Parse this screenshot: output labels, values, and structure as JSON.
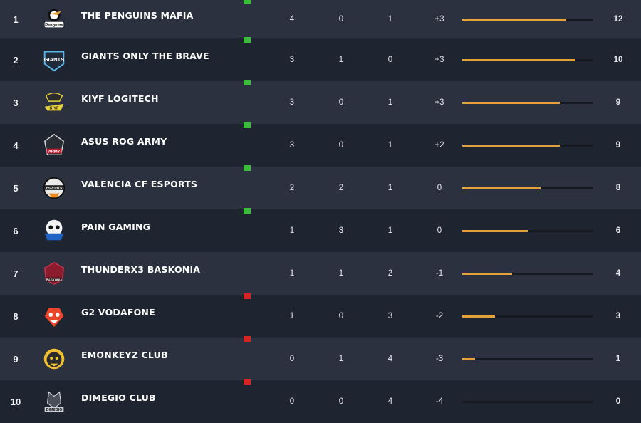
{
  "colors": {
    "bar": "#e5a13a",
    "status_up": "#3dbb3d",
    "status_down": "#d42525"
  },
  "rows": [
    {
      "rank": "1",
      "logo": "penguins-logo-icon",
      "team": "THE PENGUINS MAFIA",
      "status": "green",
      "w": "4",
      "d": "0",
      "l": "1",
      "diff": "+3",
      "progress": 0.8,
      "pts": "12"
    },
    {
      "rank": "2",
      "logo": "giants-logo-icon",
      "team": "GIANTS ONLY THE BRAVE",
      "status": "green",
      "w": "3",
      "d": "1",
      "l": "0",
      "diff": "+3",
      "progress": 0.87,
      "pts": "10"
    },
    {
      "rank": "3",
      "logo": "kiyf-logo-icon",
      "team": "KIYF LOGITECH",
      "status": "green",
      "w": "3",
      "d": "0",
      "l": "1",
      "diff": "+3",
      "progress": 0.75,
      "pts": "9"
    },
    {
      "rank": "4",
      "logo": "rog-army-logo-icon",
      "team": "ASUS ROG ARMY",
      "status": "green",
      "w": "3",
      "d": "0",
      "l": "1",
      "diff": "+2",
      "progress": 0.75,
      "pts": "9"
    },
    {
      "rank": "5",
      "logo": "valencia-logo-icon",
      "team": "VALENCIA CF ESPORTS",
      "status": "green",
      "w": "2",
      "d": "2",
      "l": "1",
      "diff": "0",
      "progress": 0.6,
      "pts": "8"
    },
    {
      "rank": "6",
      "logo": "pain-gaming-logo-icon",
      "team": "PAIN GAMING",
      "status": "green",
      "w": "1",
      "d": "3",
      "l": "1",
      "diff": "0",
      "progress": 0.5,
      "pts": "6"
    },
    {
      "rank": "7",
      "logo": "baskonia-logo-icon",
      "team": "THUNDERX3 BASKONIA",
      "status": "none",
      "w": "1",
      "d": "1",
      "l": "2",
      "diff": "-1",
      "progress": 0.38,
      "pts": "4"
    },
    {
      "rank": "8",
      "logo": "g2-logo-icon",
      "team": "G2 VODAFONE",
      "status": "red",
      "w": "1",
      "d": "0",
      "l": "3",
      "diff": "-2",
      "progress": 0.25,
      "pts": "3"
    },
    {
      "rank": "9",
      "logo": "emonkeyz-logo-icon",
      "team": "EMONKEYZ CLUB",
      "status": "red",
      "w": "0",
      "d": "1",
      "l": "4",
      "diff": "-3",
      "progress": 0.1,
      "pts": "1"
    },
    {
      "rank": "10",
      "logo": "dimegio-logo-icon",
      "team": "DIMEGIO CLUB",
      "status": "red",
      "w": "0",
      "d": "0",
      "l": "4",
      "diff": "-4",
      "progress": 0.0,
      "pts": "0"
    }
  ]
}
